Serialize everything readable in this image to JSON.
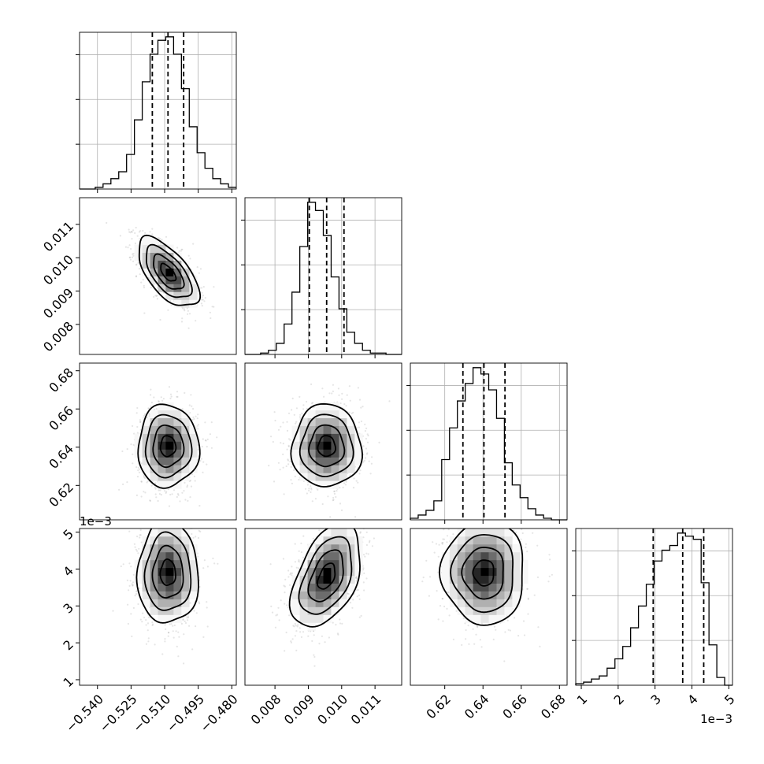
{
  "chart_data": {
    "type": "corner",
    "parameters": [
      {
        "range": [
          -0.548,
          -0.478
        ],
        "ticks": [
          -0.54,
          -0.525,
          -0.51,
          -0.495,
          -0.48
        ],
        "tick_labels": [
          "−0.540",
          "−0.525",
          "−0.510",
          "−0.495",
          "−0.480"
        ],
        "mean": -0.5085,
        "sd": 0.0068,
        "quantiles": [
          -0.5155,
          -0.5085,
          -0.5015
        ],
        "offset_label": ""
      },
      {
        "range": [
          0.0071,
          0.0118
        ],
        "ticks": [
          0.008,
          0.009,
          0.01,
          0.011
        ],
        "tick_labels": [
          "0.008",
          "0.009",
          "0.010",
          "0.011"
        ],
        "mean": 0.00955,
        "sd": 0.00052,
        "quantiles": [
          0.00903,
          0.00955,
          0.01007
        ],
        "offset_label": ""
      },
      {
        "range": [
          0.602,
          0.684
        ],
        "ticks": [
          0.62,
          0.64,
          0.66,
          0.68
        ],
        "tick_labels": [
          "0.62",
          "0.64",
          "0.66",
          "0.68"
        ],
        "mean": 0.6405,
        "sd": 0.0108,
        "quantiles": [
          0.6295,
          0.6405,
          0.6515
        ],
        "offset_label": ""
      },
      {
        "range": [
          0.00085,
          0.0051
        ],
        "ticks": [
          0.001,
          0.002,
          0.003,
          0.004,
          0.005
        ],
        "tick_labels": [
          "1",
          "2",
          "3",
          "4",
          "5"
        ],
        "mean": 0.004,
        "sd": 0.0006,
        "quantiles": [
          0.00295,
          0.00375,
          0.00432
        ],
        "offset_label": "1e−3"
      }
    ],
    "histograms": [
      {
        "edges": [
          -0.548,
          0.0035
        ],
        "counts": [
          0,
          0,
          1,
          3,
          6,
          10,
          20,
          40,
          62,
          78,
          86,
          88,
          78,
          58,
          36,
          21,
          12,
          6,
          3,
          1
        ]
      },
      {
        "edges": [
          0.0071,
          0.000235
        ],
        "counts": [
          0,
          0,
          1,
          3,
          8,
          22,
          45,
          78,
          110,
          104,
          86,
          56,
          33,
          16,
          8,
          3,
          1,
          1,
          0,
          0
        ]
      },
      {
        "edges": [
          0.602,
          0.0041
        ],
        "counts": [
          1,
          3,
          6,
          12,
          38,
          58,
          75,
          86,
          96,
          92,
          82,
          64,
          36,
          22,
          14,
          7,
          3,
          1,
          0,
          0
        ]
      },
      {
        "edges": [
          0.00085,
          0.0002125
        ],
        "counts": [
          1,
          2,
          4,
          6,
          11,
          17,
          25,
          37,
          51,
          65,
          80,
          87,
          90,
          98,
          96,
          94,
          66,
          26,
          5,
          0
        ]
      }
    ],
    "pairs": [
      {
        "x": 0,
        "y": 1,
        "mx": -0.5085,
        "my": 0.00955,
        "sx": 0.0068,
        "sy": 0.00052,
        "rho": -0.62
      },
      {
        "x": 0,
        "y": 2,
        "mx": -0.5085,
        "my": 0.6405,
        "sx": 0.0068,
        "sy": 0.0108,
        "rho": 0.0
      },
      {
        "x": 1,
        "y": 2,
        "mx": 0.00955,
        "my": 0.6405,
        "sx": 0.00052,
        "sy": 0.0108,
        "rho": 0.0
      },
      {
        "x": 0,
        "y": 3,
        "mx": -0.5085,
        "my": 0.0039,
        "sx": 0.0068,
        "sy": 0.0007,
        "rho": 0.0
      },
      {
        "x": 1,
        "y": 3,
        "mx": 0.00955,
        "my": 0.0038,
        "sx": 0.00052,
        "sy": 0.0007,
        "rho": 0.45
      },
      {
        "x": 2,
        "y": 3,
        "mx": 0.6405,
        "my": 0.0039,
        "sx": 0.0108,
        "sy": 0.0007,
        "rho": 0.0
      }
    ],
    "contour_levels_sigma": [
      0.5,
      1.0,
      1.5,
      2.0
    ],
    "grid": true
  }
}
